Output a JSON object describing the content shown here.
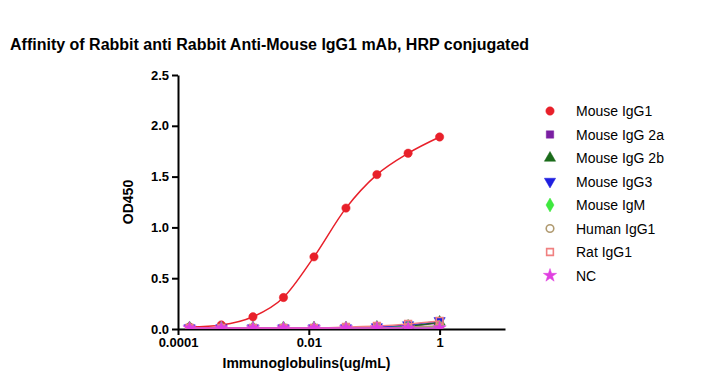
{
  "chart_data": {
    "type": "scatter",
    "title": "Affinity of Rabbit anti Rabbit Anti-Mouse IgG1 mAb, HRP conjugated",
    "x_label": "Immunoglobulins(ug/mL)",
    "y_label": "OD450",
    "log": "x",
    "grid": false,
    "legend": "right",
    "xlim": [
      0.0001,
      10
    ],
    "xticks": [
      0.0001,
      0.01,
      1
    ],
    "ylim": [
      0,
      2.5
    ],
    "yticks": [
      {
        "value": 0,
        "label": "0.0"
      },
      0.5,
      {
        "value": 1,
        "label": "1.0"
      },
      1.5,
      {
        "value": 2,
        "label": "2.0"
      },
      2.5
    ],
    "x": [
      0.00015,
      0.00046,
      0.0014,
      0.0041,
      0.012,
      0.037,
      0.11,
      0.33,
      1
    ],
    "series": [
      {
        "name": "Mouse IgG1",
        "color": "#e8202a",
        "marker": "circle",
        "line_style": "solid",
        "values": [
          0.02,
          0.04,
          0.12,
          0.31,
          0.71,
          1.19,
          1.52,
          1.73,
          1.89
        ]
      },
      {
        "name": "Mouse IgG 2a",
        "color": "#7a1fa2",
        "marker": "square",
        "line_style": "solid",
        "values": [
          0.01,
          0.01,
          0.01,
          0.01,
          0.01,
          0.01,
          0.02,
          0.03,
          0.06
        ]
      },
      {
        "name": "Mouse IgG 2b",
        "color": "#1a6b1a",
        "marker": "triangle-up",
        "line_style": "solid",
        "values": [
          0.01,
          0.01,
          0.01,
          0.01,
          0.01,
          0.01,
          0.02,
          0.03,
          0.07
        ]
      },
      {
        "name": "Mouse IgG3",
        "color": "#1f1fe0",
        "marker": "triangle-down",
        "line_style": "solid",
        "values": [
          0.01,
          0.01,
          0.01,
          0.01,
          0.01,
          0.01,
          0.02,
          0.04,
          0.08
        ]
      },
      {
        "name": "Mouse IgM",
        "color": "#3ee83e",
        "marker": "diamond",
        "line_style": "solid",
        "values": [
          0.01,
          0.01,
          0.01,
          0.01,
          0.01,
          0.01,
          0.01,
          0.02,
          0.02
        ]
      },
      {
        "name": "Human IgG1",
        "color": "#b09a70",
        "marker": "circle-open",
        "line_style": "solid",
        "values": [
          0.01,
          0.01,
          0.01,
          0.01,
          0.01,
          0.01,
          0.01,
          0.02,
          0.03
        ]
      },
      {
        "name": "Rat IgG1",
        "color": "#f08080",
        "marker": "square-open",
        "line_style": "solid",
        "values": [
          0.01,
          0.01,
          0.01,
          0.01,
          0.01,
          0.02,
          0.03,
          0.05,
          0.08
        ]
      },
      {
        "name": "NC",
        "color": "#e040e0",
        "marker": "star",
        "line_style": "solid",
        "values": [
          0.01,
          0.01,
          0.01,
          0.01,
          0.01,
          0.01,
          0.01,
          0.01,
          0.01
        ]
      }
    ]
  }
}
